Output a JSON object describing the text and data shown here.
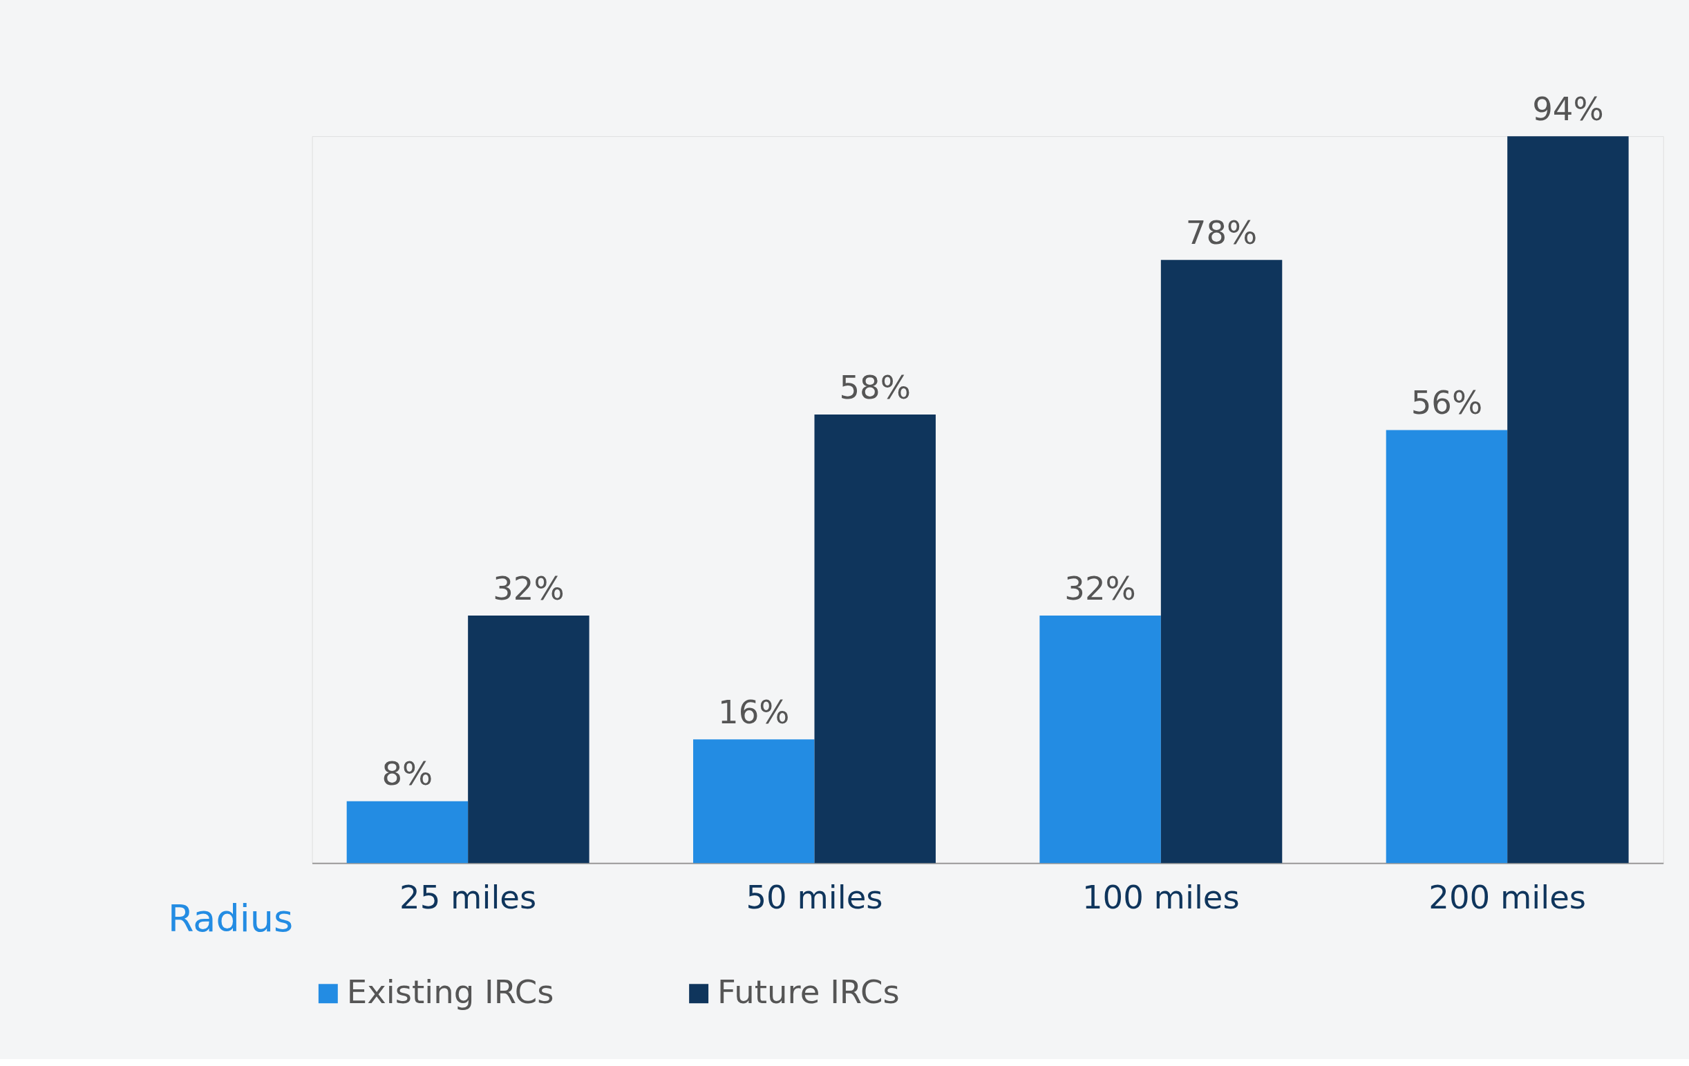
{
  "chart_data": {
    "type": "bar",
    "xlabel": "Radius",
    "categories": [
      "25 miles",
      "50 miles",
      "100 miles",
      "200 miles"
    ],
    "series": [
      {
        "name": "Existing IRCs",
        "color": "#238ce3",
        "values": [
          8,
          16,
          32,
          56
        ],
        "value_labels": [
          "8%",
          "16%",
          "32%",
          "56%"
        ]
      },
      {
        "name": "Future IRCs",
        "color": "#0f355c",
        "values": [
          32,
          58,
          78,
          94
        ],
        "value_labels": [
          "32%",
          "58%",
          "78%",
          "94%"
        ]
      }
    ],
    "legend": "bottom",
    "grid": false
  }
}
